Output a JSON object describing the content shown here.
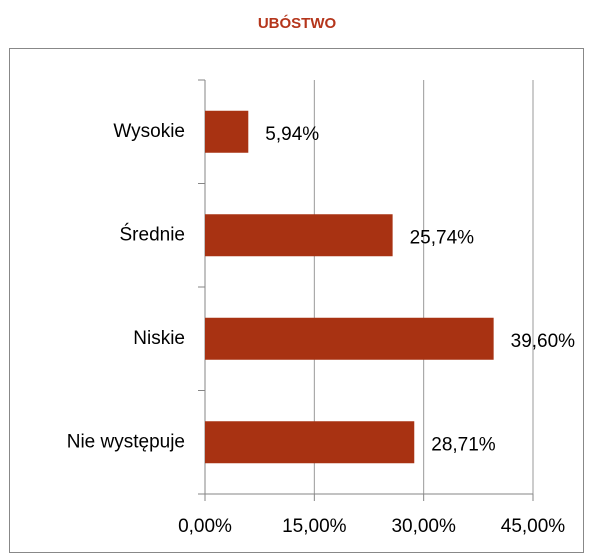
{
  "chart_data": {
    "type": "bar",
    "orientation": "horizontal",
    "title": "UBÓSTWO",
    "categories": [
      "Wysokie",
      "Średnie",
      "Niskie",
      "Nie występuje"
    ],
    "values": [
      5.94,
      25.74,
      39.6,
      28.71
    ],
    "value_labels": [
      "5,94%",
      "25,74%",
      "39,60%",
      "28,71%"
    ],
    "color": "#a83212",
    "xlim": [
      0,
      45
    ],
    "xticks": [
      {
        "value": 0,
        "label": "0,00%"
      },
      {
        "value": 15,
        "label": "15,00%"
      },
      {
        "value": 30,
        "label": "30,00%"
      },
      {
        "value": 45,
        "label": "45,00%"
      }
    ],
    "grid": true
  }
}
